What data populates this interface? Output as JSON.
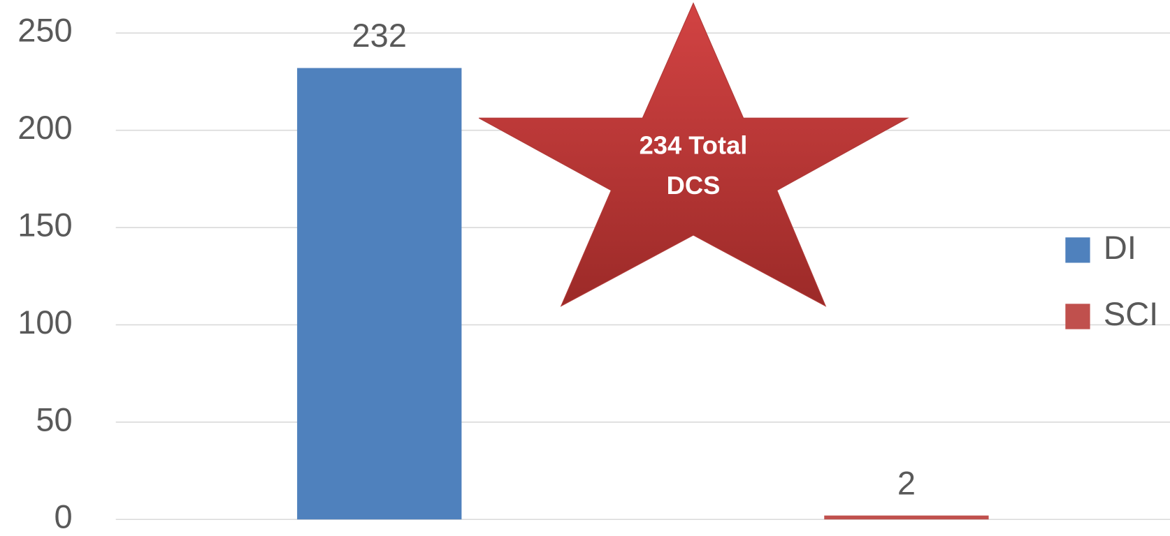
{
  "chart_data": {
    "type": "bar",
    "categories": [
      null
    ],
    "series": [
      {
        "name": "DI",
        "color": "#4f81bd",
        "values": [
          232
        ]
      },
      {
        "name": "SCI",
        "color": "#c0504d",
        "values": [
          2
        ]
      }
    ],
    "ylim": [
      0,
      250
    ],
    "yticks": [
      0,
      50,
      100,
      150,
      200,
      250
    ],
    "grid": true,
    "legend": "right",
    "annotation": [
      "234 Total",
      "DCS"
    ]
  }
}
